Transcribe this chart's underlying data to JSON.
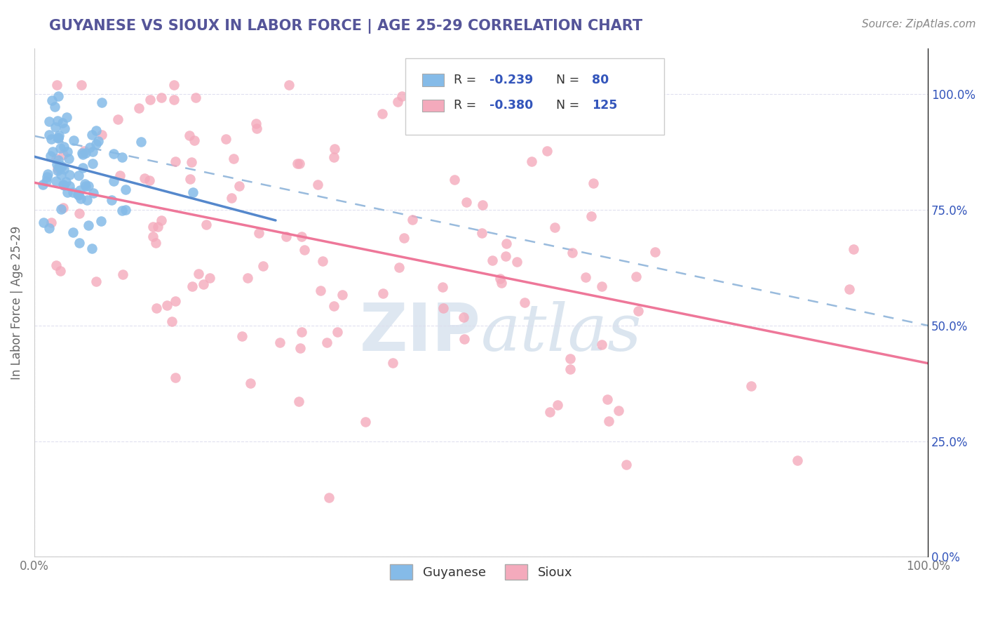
{
  "title": "GUYANESE VS SIOUX IN LABOR FORCE | AGE 25-29 CORRELATION CHART",
  "source_text": "Source: ZipAtlas.com",
  "ylabel": "In Labor Force | Age 25-29",
  "xlim": [
    0.0,
    1.0
  ],
  "ylim": [
    0.0,
    1.1
  ],
  "guyanese_R": -0.239,
  "guyanese_N": 80,
  "sioux_R": -0.38,
  "sioux_N": 125,
  "guyanese_color": "#85BBE8",
  "sioux_color": "#F4AABC",
  "guyanese_line_color": "#5588CC",
  "sioux_line_color": "#EE7799",
  "dashed_line_color": "#99BBDD",
  "title_color": "#555599",
  "source_color": "#888888",
  "background_color": "#FFFFFF",
  "grid_color": "#DDDDEE",
  "legend_R_color": "#3355BB",
  "legend_N_color": "#3355BB",
  "legend_label_color": "#333333",
  "tick_color": "#777777",
  "ylabel_color": "#666666",
  "watermark_zip_color": "#C8D8E8",
  "watermark_atlas_color": "#B8CCE0",
  "ytick_positions": [
    0.0,
    0.25,
    0.5,
    0.75,
    1.0
  ],
  "ytick_pct": [
    "0.0%",
    "25.0%",
    "50.0%",
    "75.0%",
    "100.0%"
  ],
  "guyanese_seed": 42,
  "sioux_seed": 7
}
